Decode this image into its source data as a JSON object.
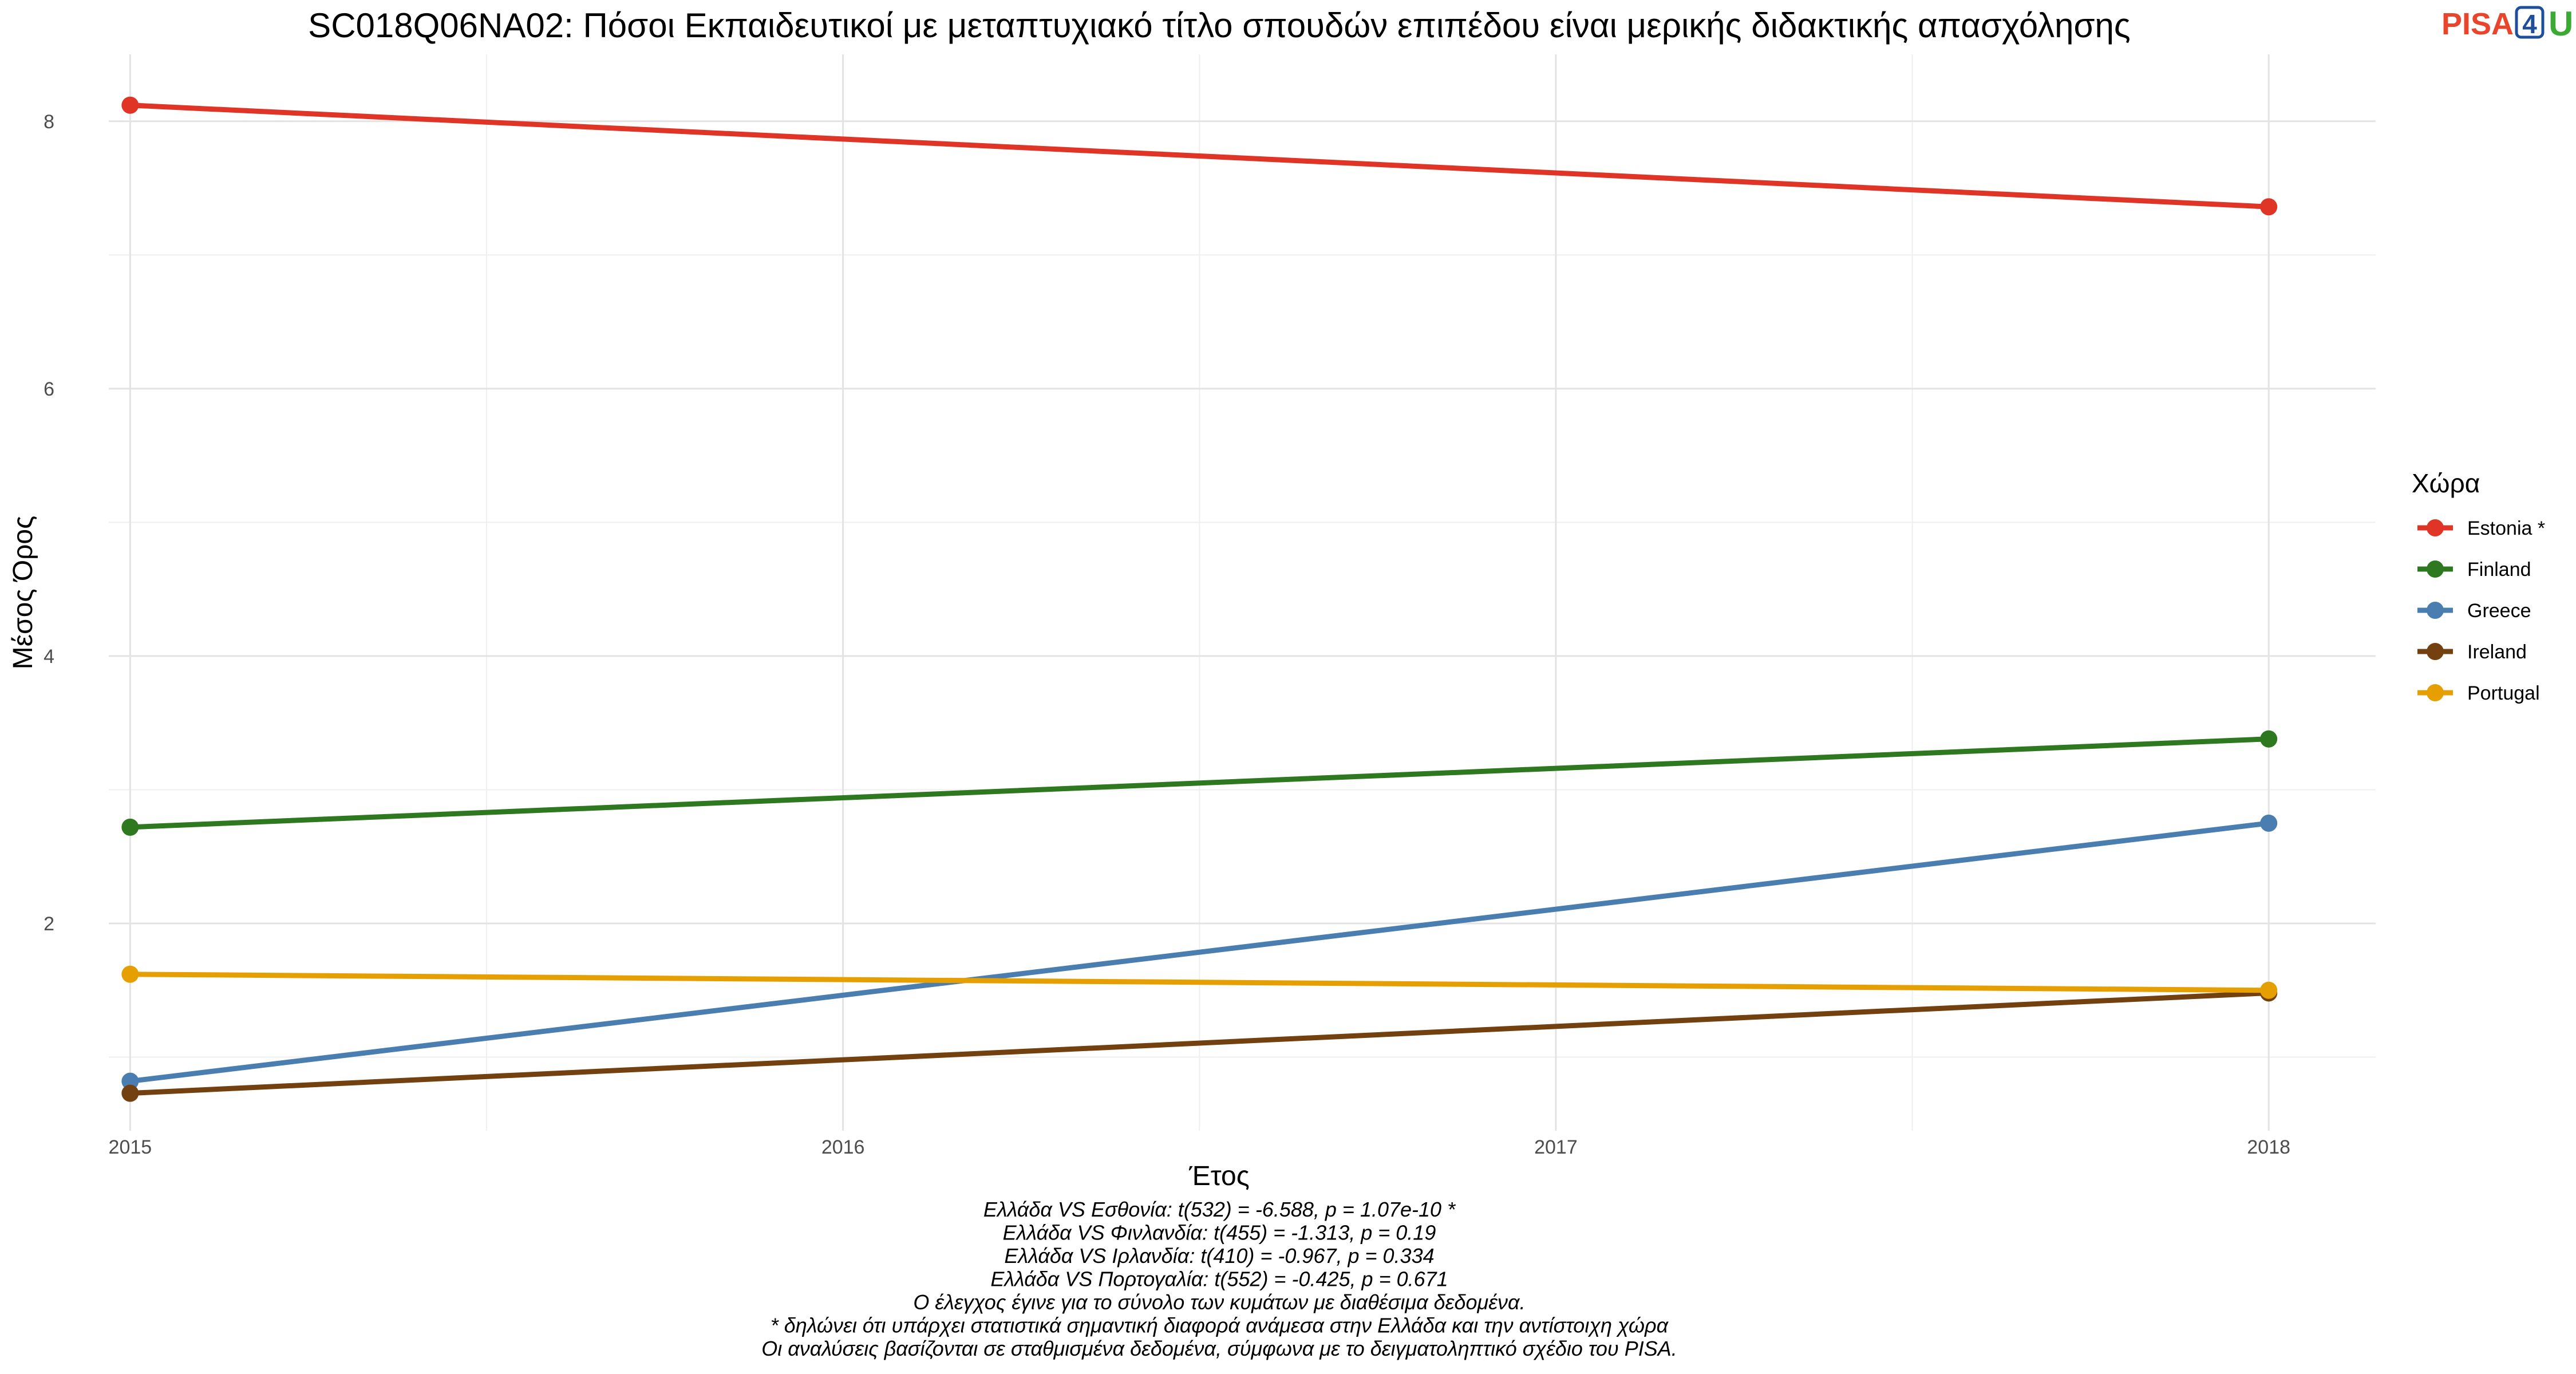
{
  "chart_data": {
    "type": "line",
    "title": "SC018Q06NA02: Πόσοι Εκπαιδευτικοί με μεταπτυχιακό τίτλο σπουδών επιπέδου είναι μερικής διδακτικής απασχόλησης",
    "xlabel": "Έτος",
    "ylabel": "Μέσος Όρος",
    "x_ticks": [
      2015,
      2016,
      2017,
      2018
    ],
    "y_ticks": [
      2,
      4,
      6,
      8
    ],
    "xlim": [
      2014.97,
      2018.15
    ],
    "ylim": [
      0.45,
      8.5
    ],
    "grid": true,
    "legend_title": "Χώρα",
    "legend_position": "right",
    "series": [
      {
        "name": "Estonia *",
        "color": "#E03426",
        "points": [
          [
            2015,
            8.12
          ],
          [
            2018,
            7.36
          ]
        ]
      },
      {
        "name": "Finland",
        "color": "#2E7820",
        "points": [
          [
            2015,
            2.72
          ],
          [
            2018,
            3.38
          ]
        ]
      },
      {
        "name": "Greece",
        "color": "#4A7EB0",
        "points": [
          [
            2015,
            0.82
          ],
          [
            2018,
            2.75
          ]
        ]
      },
      {
        "name": "Ireland",
        "color": "#73400F",
        "points": [
          [
            2015,
            0.73
          ],
          [
            2018,
            1.48
          ]
        ]
      },
      {
        "name": "Portugal",
        "color": "#E69F00",
        "points": [
          [
            2015,
            1.62
          ],
          [
            2018,
            1.5
          ]
        ]
      }
    ],
    "caption": [
      "Ελλάδα VS Εσθονία: t(532) = -6.588, p = 1.07e-10 *",
      "Ελλάδα VS Φινλανδία: t(455) = -1.313, p = 0.19",
      "Ελλάδα VS Ιρλανδία: t(410) = -0.967, p = 0.334",
      "Ελλάδα VS Πορτογαλία: t(552) = -0.425, p = 0.671",
      "Ο έλεγχος έγινε για το σύνολο των κυμάτων με διαθέσιμα δεδομένα.",
      "* δηλώνει ότι υπάρχει στατιστικά σημαντική διαφορά ανάμεσα στην Ελλάδα και την αντίστοιχη χώρα",
      "Οι αναλύσεις βασίζονται σε σταθμισμένα δεδομένα, σύμφωνα με το δειγματοληπτικό σχέδιο του PISA."
    ]
  },
  "logo": {
    "part1": "PISA",
    "part2": "4",
    "part3": "U",
    "colors": [
      "#E8452C",
      "#1F4E9A",
      "#3BAA35"
    ]
  }
}
